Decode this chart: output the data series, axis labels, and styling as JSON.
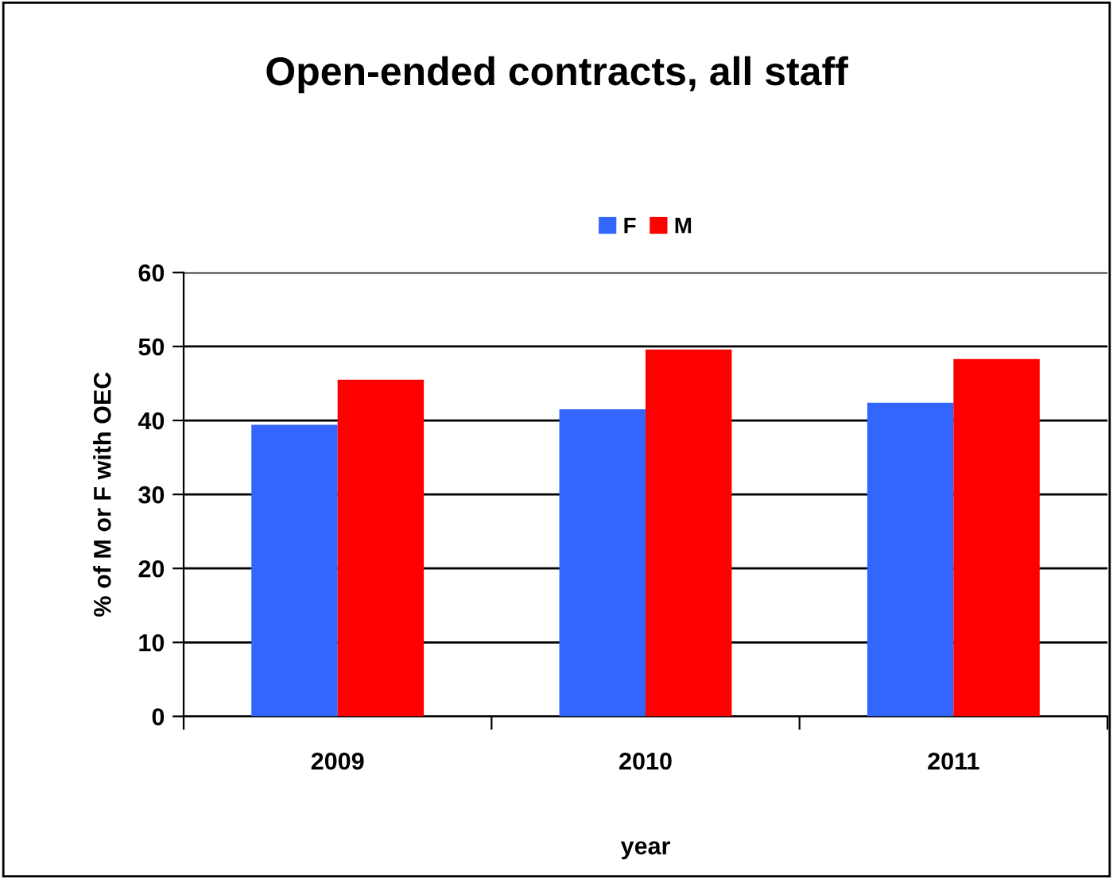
{
  "chart_data": {
    "type": "bar",
    "title": "Open-ended contracts, all staff",
    "xlabel": "year",
    "ylabel": "% of M or F with OEC",
    "categories": [
      "2009",
      "2010",
      "2011"
    ],
    "series": [
      {
        "name": "F",
        "color": "#3366ff",
        "values": [
          39.4,
          41.5,
          42.4
        ]
      },
      {
        "name": "M",
        "color": "#ff0000",
        "values": [
          45.5,
          49.6,
          48.3
        ]
      }
    ],
    "ylim": [
      0,
      60
    ],
    "yticks": [
      0,
      10,
      20,
      30,
      40,
      50,
      60
    ],
    "grid": "y",
    "legend": "top"
  }
}
